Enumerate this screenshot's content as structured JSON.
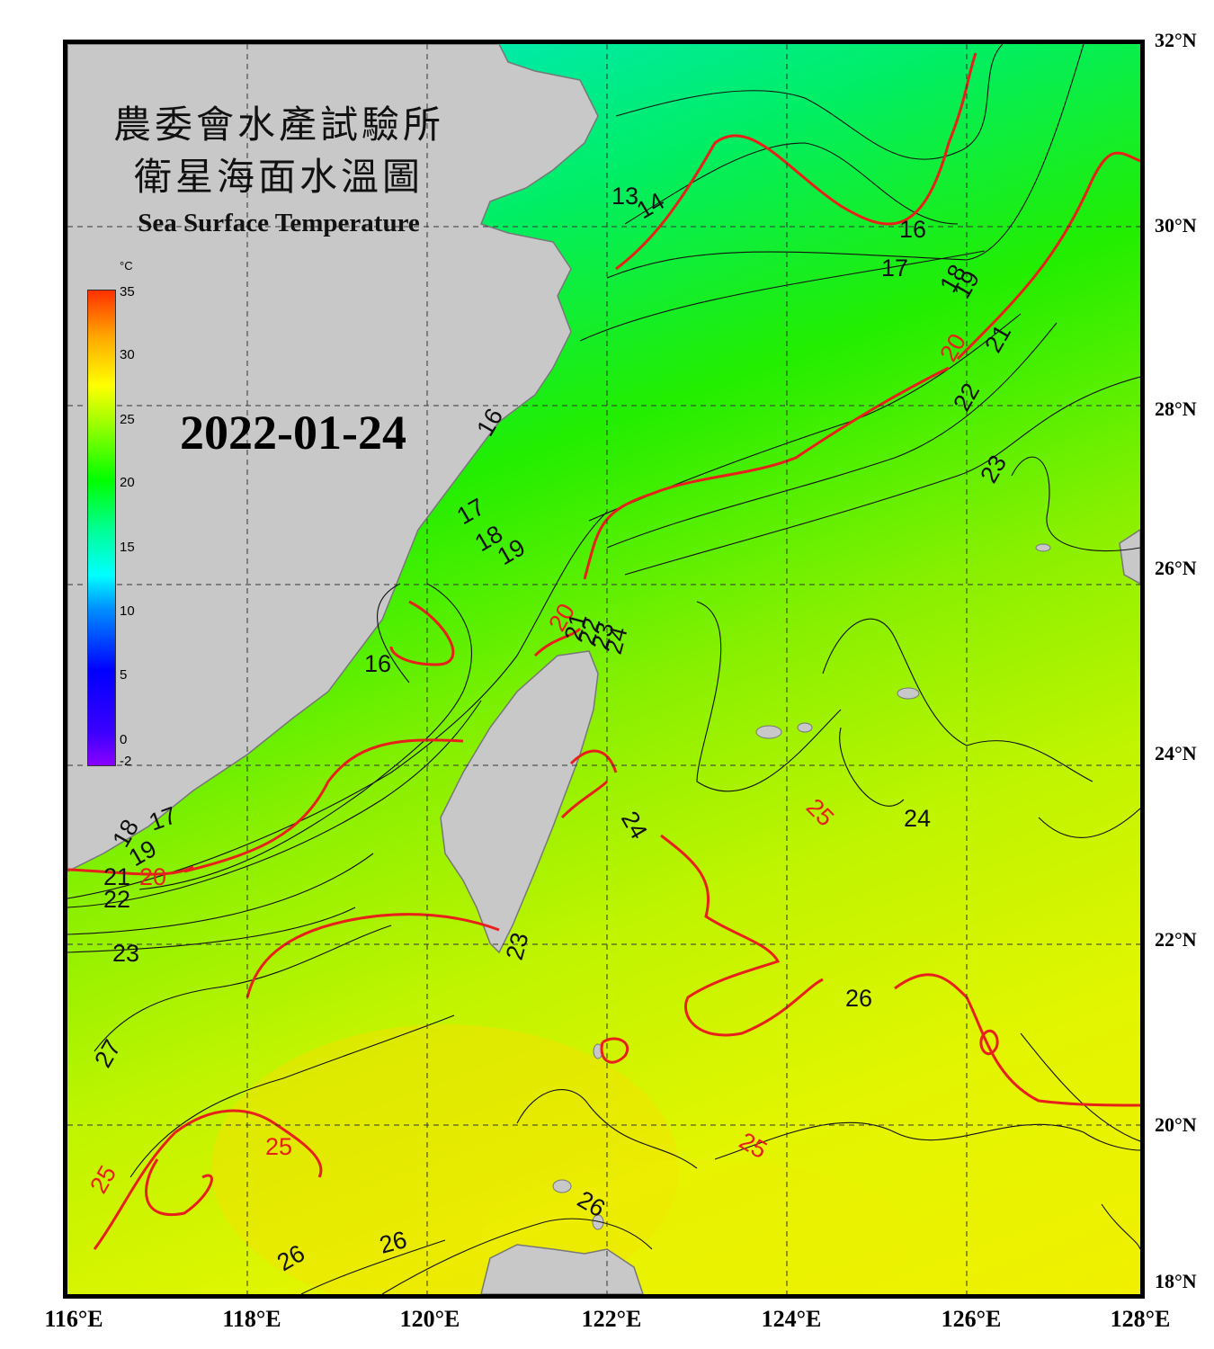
{
  "title": {
    "line1": "農委會水產試驗所",
    "line2": "衛星海面水溫圖",
    "english": "Sea Surface Temperature"
  },
  "date": "2022-01-24",
  "colorbar": {
    "unit": "°C",
    "ticks": [
      "35",
      "30",
      "25",
      "20",
      "15",
      "10",
      "5",
      "0",
      "-2"
    ]
  },
  "lat_labels": [
    "32°N",
    "30°N",
    "28°N",
    "26°N",
    "24°N",
    "22°N",
    "20°N",
    "18°N"
  ],
  "lon_labels": [
    "116°E",
    "118°E",
    "120°E",
    "122°E",
    "124°E",
    "126°E",
    "128°E"
  ],
  "colors": {
    "land": "#c8c8c8",
    "major_isotherm": "#e8201a",
    "minor_isotherm": "#111111",
    "grid": "#333333"
  },
  "contour_labels": [
    {
      "text": "13",
      "color": "black"
    },
    {
      "text": "14",
      "color": "black"
    },
    {
      "text": "16",
      "color": "black"
    },
    {
      "text": "17",
      "color": "black"
    },
    {
      "text": "18",
      "color": "black"
    },
    {
      "text": "19",
      "color": "black"
    },
    {
      "text": "20",
      "color": "red"
    },
    {
      "text": "21",
      "color": "black"
    },
    {
      "text": "22",
      "color": "black"
    },
    {
      "text": "23",
      "color": "black"
    },
    {
      "text": "16",
      "color": "black"
    },
    {
      "text": "17",
      "color": "black"
    },
    {
      "text": "18",
      "color": "black"
    },
    {
      "text": "19",
      "color": "black"
    },
    {
      "text": "16",
      "color": "black"
    },
    {
      "text": "20",
      "color": "red"
    },
    {
      "text": "21",
      "color": "black"
    },
    {
      "text": "22",
      "color": "black"
    },
    {
      "text": "23",
      "color": "black"
    },
    {
      "text": "24",
      "color": "black"
    },
    {
      "text": "17",
      "color": "black"
    },
    {
      "text": "18",
      "color": "black"
    },
    {
      "text": "19",
      "color": "black"
    },
    {
      "text": "20",
      "color": "red"
    },
    {
      "text": "21",
      "color": "black"
    },
    {
      "text": "22",
      "color": "black"
    },
    {
      "text": "23",
      "color": "black"
    },
    {
      "text": "24",
      "color": "black"
    },
    {
      "text": "25",
      "color": "red"
    },
    {
      "text": "24",
      "color": "black"
    },
    {
      "text": "23",
      "color": "black"
    },
    {
      "text": "26",
      "color": "black"
    },
    {
      "text": "25",
      "color": "red"
    },
    {
      "text": "25",
      "color": "red"
    },
    {
      "text": "25",
      "color": "red"
    },
    {
      "text": "26",
      "color": "black"
    },
    {
      "text": "26",
      "color": "black"
    },
    {
      "text": "26",
      "color": "black"
    },
    {
      "text": "27",
      "color": "black"
    },
    {
      "text": "24",
      "color": "black"
    }
  ]
}
